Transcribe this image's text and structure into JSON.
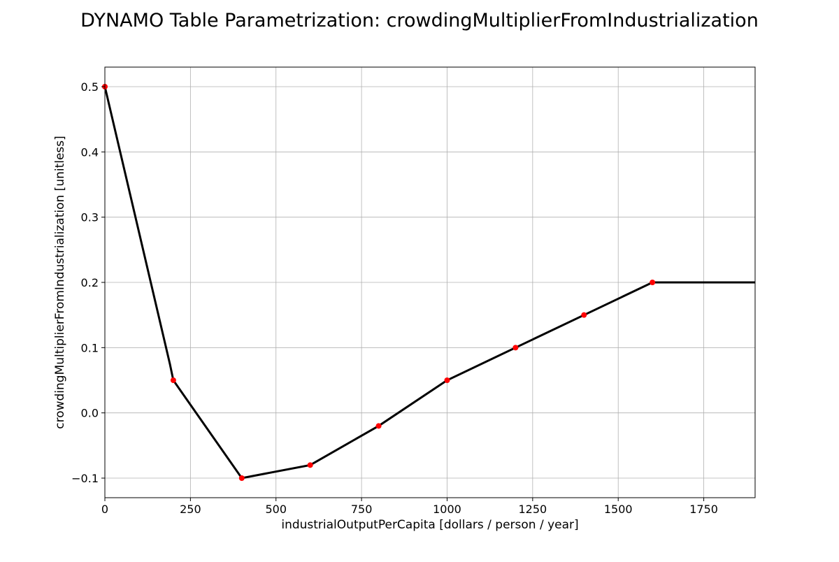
{
  "chart_data": {
    "type": "line",
    "title": "DYNAMO Table Parametrization: crowdingMultiplierFromIndustrialization",
    "xlabel": "industrialOutputPerCapita [dollars / person / year]",
    "ylabel": "crowdingMultiplierFromIndustrialization [unitless]",
    "xlim": [
      0,
      1900
    ],
    "ylim": [
      -0.13,
      0.53
    ],
    "x_ticks": [
      0,
      250,
      500,
      750,
      1000,
      1250,
      1500,
      1750
    ],
    "x_tick_labels": [
      "0",
      "250",
      "500",
      "750",
      "1000",
      "1250",
      "1500",
      "1750"
    ],
    "y_ticks": [
      -0.1,
      0.0,
      0.1,
      0.2,
      0.3,
      0.4,
      0.5
    ],
    "y_tick_labels": [
      "−0.1",
      "0.0",
      "0.1",
      "0.2",
      "0.3",
      "0.4",
      "0.5"
    ],
    "grid": true,
    "series": [
      {
        "kind": "line",
        "color": "#000000",
        "x": [
          0,
          190,
          200,
          400,
          600,
          800,
          1000,
          1200,
          1400,
          1600,
          1900
        ],
        "y": [
          0.5,
          0.075,
          0.05,
          -0.1,
          -0.08,
          -0.02,
          0.05,
          0.1,
          0.15,
          0.2,
          0.2
        ]
      },
      {
        "kind": "points",
        "color": "#ff0000",
        "x": [
          0,
          200,
          400,
          600,
          800,
          1000,
          1200,
          1400,
          1600
        ],
        "y": [
          0.5,
          0.05,
          -0.1,
          -0.08,
          -0.02,
          0.05,
          0.1,
          0.15,
          0.2
        ]
      }
    ]
  }
}
